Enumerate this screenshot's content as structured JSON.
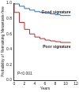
{
  "chart_data": {
    "type": "line",
    "x_label": "Years",
    "y_label": "Probability of Remaining Metastasis-free",
    "annotation": "P<0.001",
    "x": [
      0,
      1,
      2,
      3,
      4,
      5,
      6,
      7,
      8,
      9,
      10,
      11,
      12
    ],
    "series": [
      {
        "name": "Good signature",
        "color": "#2a6ebb",
        "line_style": "step",
        "values": [
          1.0,
          0.99,
          0.96,
          0.93,
          0.91,
          0.89,
          0.88,
          0.87,
          0.86,
          0.85,
          0.84,
          0.84,
          null
        ]
      },
      {
        "name": "Poor signature",
        "color": "#c0282d",
        "line_style": "step",
        "values": [
          1.0,
          0.88,
          0.75,
          0.66,
          0.6,
          0.56,
          0.54,
          0.52,
          0.51,
          0.5,
          0.49,
          0.49,
          null
        ]
      }
    ],
    "xlim": [
      0,
      12
    ],
    "xticks": [
      0,
      2,
      4,
      6,
      8,
      10,
      12
    ],
    "ylim": [
      0,
      1
    ],
    "yticks": [
      {
        "value": 0,
        "label": "0.0"
      },
      0.2,
      0.4,
      0.6,
      0.8,
      {
        "value": 1,
        "label": "1.0"
      }
    ],
    "grid": false
  }
}
